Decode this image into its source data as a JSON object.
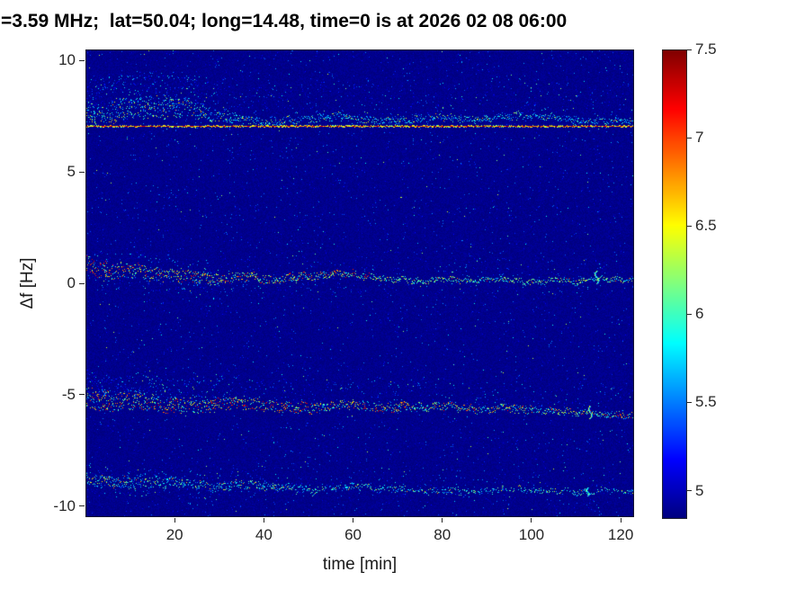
{
  "chart_data": {
    "type": "heatmap",
    "title": "=3.59 MHz;  lat=50.04; long=14.48, time=0 is at 2026 02 08 06:00",
    "xlabel": "time [min]",
    "ylabel": "Δf [Hz]",
    "xlim": [
      0,
      123
    ],
    "ylim": [
      -10.5,
      10.5
    ],
    "xticks": [
      20,
      40,
      60,
      80,
      100,
      120
    ],
    "yticks": [
      10,
      5,
      0,
      -5,
      -10
    ],
    "clim": [
      4.85,
      7.5
    ],
    "colorbar_ticks": [
      7.5,
      7,
      6.5,
      6,
      5.5,
      5
    ],
    "colormap": "jet",
    "grid": false,
    "legend": "none",
    "seed": 7,
    "background_value": 4.9,
    "observed_bands_hz": [
      7.1,
      0.3,
      -5.5,
      -9.2
    ],
    "traces": [
      {
        "name": "upper-sideband-line",
        "kind": "hline",
        "y": 7.08,
        "value_range": [
          6.35,
          7.45
        ]
      },
      {
        "name": "upper-sideband-ridge",
        "kind": "wavy",
        "points": [
          [
            0,
            7.55
          ],
          [
            5,
            7.7
          ],
          [
            10,
            7.85
          ],
          [
            16,
            7.95
          ],
          [
            22,
            7.9
          ],
          [
            27,
            7.7
          ],
          [
            32,
            7.45
          ],
          [
            38,
            7.3
          ],
          [
            44,
            7.3
          ],
          [
            50,
            7.4
          ],
          [
            56,
            7.5
          ],
          [
            61,
            7.4
          ],
          [
            67,
            7.3
          ],
          [
            73,
            7.35
          ],
          [
            79,
            7.5
          ],
          [
            85,
            7.35
          ],
          [
            91,
            7.45
          ],
          [
            97,
            7.55
          ],
          [
            103,
            7.5
          ],
          [
            109,
            7.35
          ],
          [
            115,
            7.3
          ],
          [
            125,
            7.3
          ]
        ],
        "spread_pts": [
          [
            0,
            0.5
          ],
          [
            20,
            0.45
          ],
          [
            35,
            0.18
          ],
          [
            125,
            0.13
          ]
        ],
        "hot": [
          [
            0,
            0.25
          ],
          [
            30,
            0.12
          ],
          [
            125,
            0.07
          ]
        ],
        "hot_range": [
          6.2,
          6.8
        ],
        "mid_range": [
          5.3,
          6.15
        ],
        "halo_prob": [
          [
            0,
            0.85
          ],
          [
            20,
            0.75
          ],
          [
            35,
            0.3
          ],
          [
            70,
            0.18
          ],
          [
            125,
            0.12
          ]
        ],
        "halo_spread": 1.5,
        "halo_dir": 1
      },
      {
        "name": "carrier-trace",
        "kind": "wavy",
        "points": [
          [
            0,
            0.8
          ],
          [
            6,
            0.6
          ],
          [
            12,
            0.55
          ],
          [
            18,
            0.4
          ],
          [
            25,
            0.3
          ],
          [
            31,
            0.25
          ],
          [
            37,
            0.3
          ],
          [
            43,
            0.15
          ],
          [
            48,
            0.3
          ],
          [
            53,
            0.4
          ],
          [
            58,
            0.45
          ],
          [
            63,
            0.35
          ],
          [
            68,
            0.2
          ],
          [
            74,
            0.15
          ],
          [
            80,
            0.2
          ],
          [
            85,
            0.1
          ],
          [
            90,
            0.2
          ],
          [
            95,
            0.15
          ],
          [
            100,
            0.1
          ],
          [
            105,
            0.15
          ],
          [
            110,
            0.1
          ],
          [
            114,
            0.25
          ],
          [
            118,
            0.15
          ],
          [
            125,
            0.2
          ]
        ],
        "spread_pts": [
          [
            0,
            0.4
          ],
          [
            20,
            0.28
          ],
          [
            40,
            0.18
          ],
          [
            70,
            0.12
          ],
          [
            125,
            0.1
          ]
        ],
        "hot": [
          [
            0,
            0.5
          ],
          [
            30,
            0.4
          ],
          [
            55,
            0.35
          ],
          [
            68,
            0.12
          ],
          [
            125,
            0.08
          ]
        ],
        "hot_range": [
          6.4,
          7.35
        ],
        "mid_range": [
          5.7,
          6.4
        ],
        "halo_prob": [
          [
            0,
            0.5
          ],
          [
            25,
            0.3
          ],
          [
            50,
            0.15
          ],
          [
            125,
            0.06
          ]
        ],
        "halo_spread": 0.7,
        "halo_dir": 0
      },
      {
        "name": "lower-sideband-trace",
        "kind": "wavy",
        "points": [
          [
            0,
            -5.15
          ],
          [
            6,
            -5.3
          ],
          [
            12,
            -5.25
          ],
          [
            18,
            -5.45
          ],
          [
            25,
            -5.5
          ],
          [
            32,
            -5.35
          ],
          [
            40,
            -5.45
          ],
          [
            47,
            -5.6
          ],
          [
            55,
            -5.5
          ],
          [
            62,
            -5.45
          ],
          [
            68,
            -5.6
          ],
          [
            75,
            -5.5
          ],
          [
            82,
            -5.5
          ],
          [
            88,
            -5.65
          ],
          [
            95,
            -5.6
          ],
          [
            100,
            -5.65
          ],
          [
            105,
            -5.75
          ],
          [
            110,
            -5.8
          ],
          [
            113,
            -5.7
          ],
          [
            116,
            -5.9
          ],
          [
            125,
            -5.9
          ]
        ],
        "spread_pts": [
          [
            0,
            0.45
          ],
          [
            25,
            0.32
          ],
          [
            50,
            0.22
          ],
          [
            80,
            0.16
          ],
          [
            125,
            0.12
          ]
        ],
        "hot": [
          [
            0,
            0.5
          ],
          [
            40,
            0.45
          ],
          [
            70,
            0.4
          ],
          [
            90,
            0.28
          ],
          [
            125,
            0.18
          ]
        ],
        "hot_range": [
          6.4,
          7.35
        ],
        "mid_range": [
          5.6,
          6.4
        ],
        "halo_prob": [
          [
            0,
            0.8
          ],
          [
            20,
            0.6
          ],
          [
            35,
            0.3
          ],
          [
            60,
            0.18
          ],
          [
            125,
            0.1
          ]
        ],
        "halo_spread": 1.1,
        "halo_dir": 1
      },
      {
        "name": "second-lower-sideband-trace",
        "kind": "wavy",
        "points": [
          [
            0,
            -8.8
          ],
          [
            8,
            -8.95
          ],
          [
            15,
            -8.85
          ],
          [
            22,
            -8.95
          ],
          [
            30,
            -9.1
          ],
          [
            38,
            -9.0
          ],
          [
            45,
            -9.15
          ],
          [
            50,
            -9.3
          ],
          [
            57,
            -9.15
          ],
          [
            63,
            -9.1
          ],
          [
            70,
            -9.25
          ],
          [
            77,
            -9.3
          ],
          [
            84,
            -9.35
          ],
          [
            90,
            -9.3
          ],
          [
            97,
            -9.2
          ],
          [
            103,
            -9.3
          ],
          [
            110,
            -9.35
          ],
          [
            116,
            -9.3
          ],
          [
            125,
            -9.35
          ]
        ],
        "spread_pts": [
          [
            0,
            0.28
          ],
          [
            25,
            0.2
          ],
          [
            60,
            0.14
          ],
          [
            125,
            0.1
          ]
        ],
        "hot": [
          [
            0,
            0.22
          ],
          [
            30,
            0.12
          ],
          [
            60,
            0.06
          ],
          [
            125,
            0.04
          ]
        ],
        "hot_range": [
          6.3,
          6.9
        ],
        "mid_range": [
          5.4,
          6.2
        ],
        "halo_prob": [
          [
            0,
            0.35
          ],
          [
            30,
            0.2
          ],
          [
            60,
            0.1
          ],
          [
            125,
            0.05
          ]
        ],
        "halo_spread": 0.5,
        "halo_dir": 0,
        "gap_prob": [
          [
            0,
            0
          ],
          [
            60,
            0.08
          ],
          [
            85,
            0.25
          ],
          [
            100,
            0.3
          ],
          [
            112,
            0.4
          ],
          [
            118,
            0.25
          ],
          [
            125,
            0.2
          ]
        ]
      }
    ],
    "glitches": [
      {
        "x": 114.5,
        "y1": 0.0,
        "y2": 0.55,
        "v": 6.1
      },
      {
        "x": 113.0,
        "y1": -6.05,
        "y2": -5.5,
        "v": 6.2
      },
      {
        "x": 112.5,
        "y1": -9.55,
        "y2": -9.15,
        "v": 5.9
      }
    ],
    "colors": {
      "figure_bg": "#ffffff",
      "tick": "#262626",
      "title": "#000000",
      "deep_blue_bg": "#0000a0"
    }
  }
}
